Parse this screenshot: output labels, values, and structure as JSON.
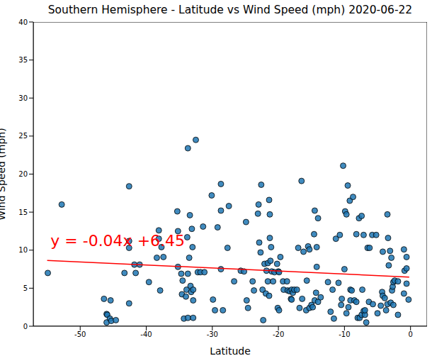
{
  "chart_data": {
    "type": "scatter",
    "title": "Southern Hemisphere - Latitude vs Wind Speed (mph) 2020-06-22",
    "x_label": "Latitude",
    "y_label": "Wind Speed (mph)",
    "color": "#1f77b4",
    "marker": "circle",
    "grid": false,
    "xlim": [
      -57.1,
      2.5
    ],
    "xticks": [
      -50,
      -40,
      -30,
      -20,
      -10,
      0
    ],
    "ylim": [
      0,
      40
    ],
    "yticks": [
      0,
      5,
      10,
      15,
      20,
      25,
      30,
      35,
      40
    ],
    "x": [
      -54.9,
      -52.8,
      -46.4,
      -46.0,
      -45.9,
      -46.0,
      -45.5,
      -45.4,
      -45.3,
      -44.6,
      -43.3,
      -42.6,
      -42.6,
      -42.6,
      -42.6,
      -41.8,
      -41.6,
      -41.0,
      -39.6,
      -38.4,
      -38.1,
      -38.1,
      -37.9,
      -37.7,
      -37.4,
      -35.3,
      -35.2,
      -35.2,
      -34.7,
      -34.6,
      -34.5,
      -34.3,
      -34.0,
      -33.9,
      -33.7,
      -33.7,
      -33.8,
      -33.7,
      -33.5,
      -33.4,
      -33.3,
      -33.2,
      -33.1,
      -33.0,
      -32.9,
      -32.9,
      -32.9,
      -32.5,
      -32.2,
      -31.8,
      -31.4,
      -31.2,
      -30.1,
      -29.9,
      -29.6,
      -29.2,
      -28.7,
      -28.7,
      -28.7,
      -28.4,
      -27.7,
      -27.5,
      -26.7,
      -25.7,
      -25.2,
      -24.9,
      -24.8,
      -24.6,
      -23.9,
      -23.7,
      -23.1,
      -23.0,
      -22.9,
      -22.7,
      -22.6,
      -22.4,
      -22.3,
      -22.1,
      -21.9,
      -21.8,
      -21.6,
      -21.6,
      -21.4,
      -21.4,
      -21.3,
      -21.2,
      -21.3,
      -21.1,
      -21.0,
      -20.8,
      -20.6,
      -20.2,
      -20.1,
      -20.0,
      -19.9,
      -19.9,
      -19.7,
      -19.3,
      -19.2,
      -18.7,
      -18.6,
      -18.3,
      -18.1,
      -18.0,
      -18.0,
      -17.8,
      -17.6,
      -17.2,
      -17.0,
      -16.8,
      -16.5,
      -16.4,
      -16.2,
      -15.8,
      -15.7,
      -15.5,
      -15.3,
      -15.3,
      -15.0,
      -14.8,
      -14.6,
      -14.5,
      -14.5,
      -14.3,
      -14.2,
      -14.2,
      -14.0,
      -14.0,
      -13.6,
      -12.5,
      -12.1,
      -11.8,
      -11.6,
      -11.3,
      -10.9,
      -10.7,
      -10.5,
      -10.4,
      -10.2,
      -10.0,
      -9.9,
      -9.7,
      -9.7,
      -9.5,
      -9.4,
      -9.2,
      -9.1,
      -9.1,
      -8.9,
      -8.7,
      -8.5,
      -8.2,
      -8.2,
      -8.0,
      -7.8,
      -7.7,
      -7.4,
      -7.4,
      -7.3,
      -7.1,
      -7.1,
      -6.9,
      -6.9,
      -6.7,
      -6.5,
      -6.3,
      -6.2,
      -5.8,
      -5.7,
      -5.2,
      -5.0,
      -4.5,
      -4.3,
      -4.2,
      -4.2,
      -3.9,
      -3.7,
      -3.5,
      -3.5,
      -3.4,
      -3.3,
      -3.1,
      -3.0,
      -2.9,
      -2.8,
      -2.7,
      -2.6,
      -2.6,
      -2.4,
      -1.9,
      -1.9,
      -1.0,
      -1.0,
      -0.9,
      -0.6,
      -0.6,
      -0.6,
      -0.3
    ],
    "values": [
      7.0,
      16.0,
      3.6,
      1.6,
      1.5,
      0.5,
      1.0,
      3.4,
      0.7,
      0.8,
      7.0,
      18.4,
      10.3,
      3.0,
      11.2,
      8.1,
      7.0,
      8.1,
      5.8,
      9.0,
      12.6,
      11.5,
      4.7,
      10.4,
      9.1,
      15.1,
      12.5,
      7.8,
      6.9,
      4.2,
      6.0,
      1.0,
      3.9,
      4.8,
      6.9,
      23.4,
      11.7,
      1.1,
      9.0,
      14.6,
      5.3,
      4.5,
      12.8,
      10.4,
      4.8,
      1.1,
      3.4,
      24.5,
      7.1,
      7.1,
      13.1,
      7.1,
      17.2,
      3.5,
      2.1,
      13.0,
      18.7,
      15.2,
      7.5,
      2.1,
      10.3,
      15.8,
      5.9,
      7.3,
      7.2,
      13.7,
      3.4,
      2.4,
      5.9,
      4.7,
      14.8,
      16.0,
      11.0,
      9.7,
      18.6,
      4.8,
      0.8,
      8.2,
      4.3,
      7.3,
      8.3,
      5.9,
      4.0,
      16.6,
      11.6,
      8.6,
      14.7,
      10.4,
      7.2,
      5.9,
      7.1,
      8.2,
      2.4,
      7.2,
      2.1,
      7.1,
      9.1,
      5.9,
      4.8,
      5.9,
      4.7,
      4.6,
      3.6,
      4.8,
      3.5,
      4.4,
      4.8,
      4.8,
      10.3,
      2.4,
      19.1,
      3.6,
      9.8,
      2.1,
      6.0,
      10.5,
      2.4,
      10.1,
      2.8,
      2.5,
      12.1,
      15.2,
      3.4,
      4.4,
      7.8,
      10.4,
      14.2,
      3.2,
      3.8,
      5.8,
      1.9,
      4.8,
      1.0,
      11.5,
      5.7,
      12.0,
      2.8,
      3.6,
      21.1,
      7.5,
      15.1,
      14.7,
      1.7,
      18.5,
      2.5,
      16.5,
      3.4,
      4.8,
      4.7,
      17.0,
      3.4,
      3.2,
      12.1,
      1.1,
      14.2,
      1.1,
      14.5,
      1.5,
      4.8,
      12.0,
      2.0,
      1.5,
      2.1,
      0.5,
      10.3,
      3.2,
      10.3,
      12.0,
      2.9,
      12.0,
      1.7,
      2.7,
      4.5,
      9.8,
      4.0,
      3.7,
      2.1,
      14.7,
      2.9,
      11.6,
      8.0,
      9.9,
      3.1,
      9.0,
      4.7,
      5.2,
      5.8,
      2.8,
      6.0,
      5.9,
      1.5,
      10.1,
      4.3,
      7.3,
      7.6,
      5.6,
      9.1,
      3.5
    ],
    "regression": {
      "x": [
        -55.0,
        -0.2
      ],
      "values": [
        8.65,
        6.46
      ],
      "color": "red",
      "line_style": "solid"
    },
    "annotation": {
      "text": "y = -0.04x +6.45",
      "x": -54.5,
      "y": 10.5,
      "color": "red"
    }
  }
}
